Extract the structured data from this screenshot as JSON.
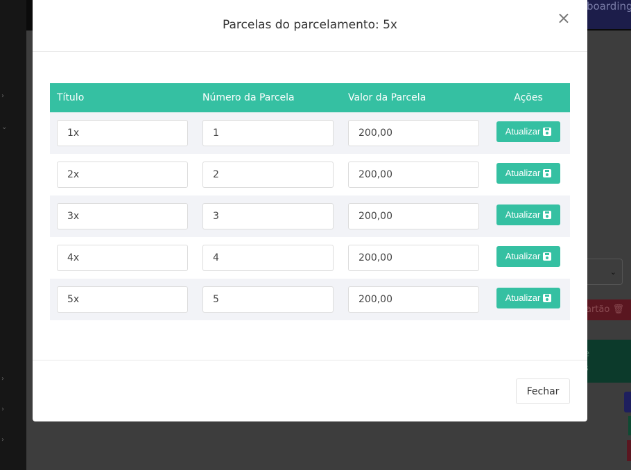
{
  "background": {
    "top_button": "boarding",
    "delete_button": "artão",
    "green_panel": [
      "e",
      "s"
    ]
  },
  "modal": {
    "title": "Parcelas do parcelamento: 5x",
    "close_icon": "×",
    "columns": [
      "Título",
      "Número da Parcela",
      "Valor da Parcela",
      "Ações"
    ],
    "rows": [
      {
        "titulo": "1x",
        "numero": "1",
        "valor": "200,00",
        "action": "Atualizar"
      },
      {
        "titulo": "2x",
        "numero": "2",
        "valor": "200,00",
        "action": "Atualizar"
      },
      {
        "titulo": "3x",
        "numero": "3",
        "valor": "200,00",
        "action": "Atualizar"
      },
      {
        "titulo": "4x",
        "numero": "4",
        "valor": "200,00",
        "action": "Atualizar"
      },
      {
        "titulo": "5x",
        "numero": "5",
        "valor": "200,00",
        "action": "Atualizar"
      }
    ],
    "close_button": "Fechar",
    "accent": "#35c0a2"
  }
}
